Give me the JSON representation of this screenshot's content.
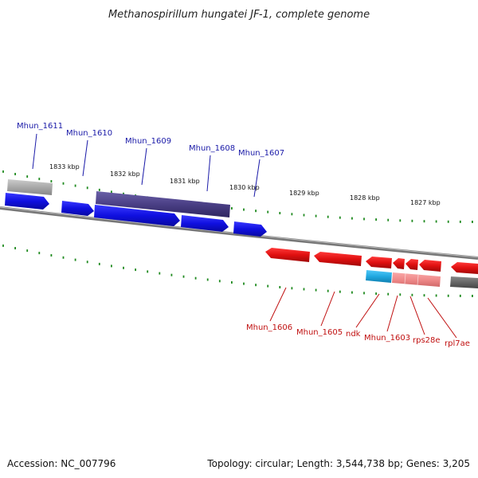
{
  "title": "Methanospirillum hungatei JF-1, complete genome",
  "accession": "Accession: NC_007796",
  "topology": "Topology: circular; Length: 3,544,738 bp; Genes: 3,205",
  "kbp_labels": [
    "1833 kbp",
    "1832 kbp",
    "1831 kbp",
    "1830 kbp",
    "1829 kbp",
    "1828 kbp",
    "1827 kbp"
  ],
  "forward_gene_labels": [
    "Mhun_1611",
    "Mhun_1610",
    "Mhun_1609",
    "Mhun_1608",
    "Mhun_1607"
  ],
  "reverse_gene_labels": [
    "Mhun_1606",
    "Mhun_1605",
    "ndk",
    "Mhun_1603",
    "rps28e",
    "rpl7ae"
  ],
  "colors": {
    "forward_gene": "#1010e0",
    "forward_operon": "#4a3f85",
    "reverse_gene": "#e01010",
    "reverse_light": "#f08a8a",
    "cyan_gene": "#20a8e0",
    "gray_gene": "#a8a8a8",
    "dark_gray_gene": "#666666",
    "backbone": "#777777",
    "tick": "#1f8a1f",
    "forward_label": "#1a1aa8",
    "reverse_label": "#c01010"
  }
}
